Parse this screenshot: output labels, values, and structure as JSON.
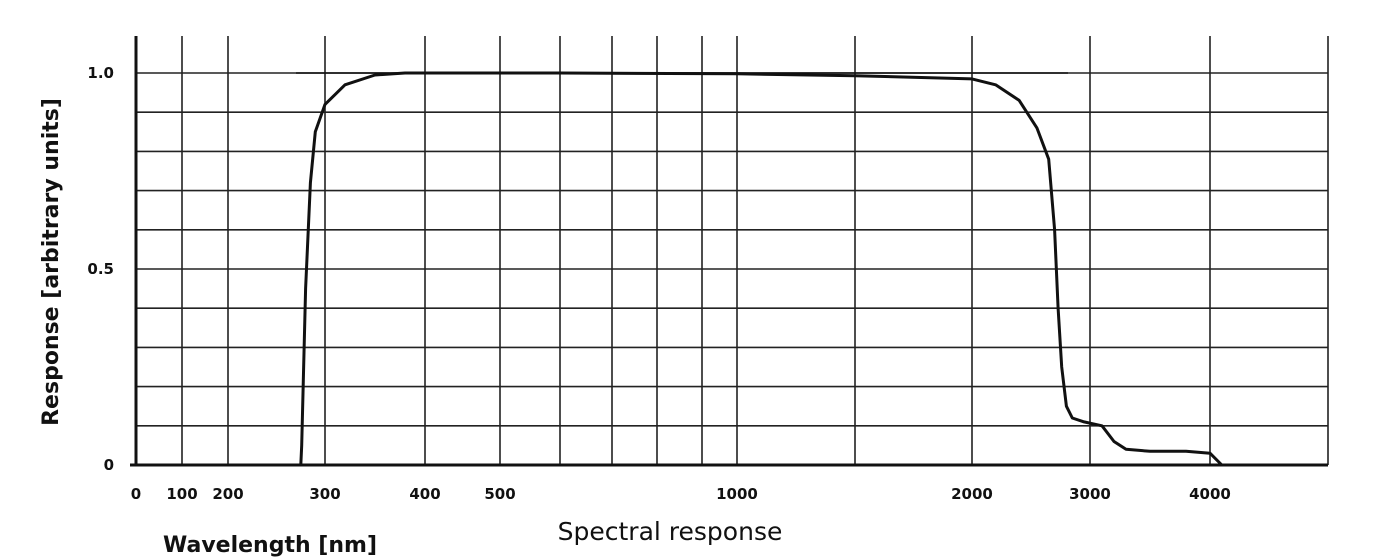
{
  "chart_data": {
    "type": "line",
    "title": "Spectral response",
    "xlabel": "Wavelength [nm]",
    "ylabel": "Response [arbitrary units]",
    "x_scale": "log",
    "xlim": [
      0,
      5000
    ],
    "ylim": [
      0,
      1.0
    ],
    "grid": true,
    "x_tick_labels": [
      "0",
      "100",
      "200",
      "300",
      "400",
      "500",
      "1000",
      "2000",
      "3000",
      "4000"
    ],
    "y_tick_labels": [
      "0",
      "0.5",
      "1.0"
    ],
    "y_ticks": [
      0,
      0.5,
      1.0
    ],
    "series": [
      {
        "x": [
          275,
          276,
          280,
          285,
          290,
          300,
          320,
          350,
          380,
          450,
          600,
          1000,
          1500,
          2000,
          2200,
          2400,
          2550,
          2650,
          2700,
          2730,
          2760,
          2800,
          2850,
          2950,
          3100,
          3200,
          3300,
          3500,
          3800,
          4000,
          4100
        ],
        "y": [
          0.0,
          0.05,
          0.45,
          0.72,
          0.85,
          0.92,
          0.97,
          0.995,
          1.0,
          1.0,
          1.0,
          0.998,
          0.993,
          0.985,
          0.97,
          0.93,
          0.86,
          0.78,
          0.6,
          0.4,
          0.25,
          0.15,
          0.12,
          0.11,
          0.1,
          0.06,
          0.04,
          0.035,
          0.035,
          0.03,
          0.0
        ]
      }
    ]
  }
}
